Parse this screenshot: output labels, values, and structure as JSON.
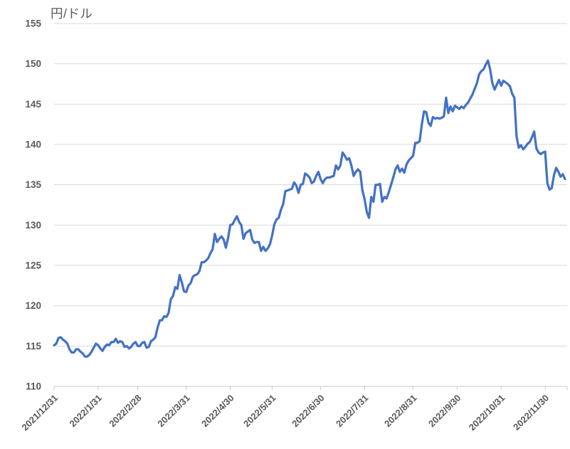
{
  "chart_title": "円/ドル",
  "colors": {
    "line": "#4472C4",
    "grid": "#D9D9D9",
    "axis": "#C8C8C8",
    "label": "#595959",
    "background": "#FFFFFF"
  },
  "chart_data": {
    "type": "line",
    "title": "円/ドル",
    "xlabel": "",
    "ylabel": "",
    "ylim": [
      110,
      155
    ],
    "ytick_labels": [
      "110",
      "115",
      "120",
      "125",
      "130",
      "135",
      "140",
      "145",
      "150",
      "155"
    ],
    "x_tick_labels": [
      "2021/12/31",
      "2022/1/31",
      "2022/2/28",
      "2022/3/31",
      "2022/4/30",
      "2022/5/31",
      "2022/6/30",
      "2022/7/31",
      "2022/8/31",
      "2022/9/30",
      "2022/10/31",
      "2022/11/30"
    ],
    "x_tick_indices": [
      0,
      20,
      38,
      60,
      80,
      99,
      121,
      141,
      163,
      183,
      203,
      223
    ],
    "grid": "horizontal",
    "legend": "none",
    "series": [
      {
        "name": "円/ドル",
        "values": [
          115.1,
          115.3,
          116.0,
          116.1,
          115.8,
          115.6,
          115.3,
          114.6,
          114.2,
          114.2,
          114.6,
          114.6,
          114.3,
          114.1,
          113.7,
          113.7,
          113.9,
          114.3,
          114.8,
          115.3,
          115.1,
          114.7,
          114.4,
          114.9,
          115.2,
          115.1,
          115.5,
          115.5,
          115.9,
          115.4,
          115.6,
          115.5,
          114.9,
          115.0,
          114.7,
          114.9,
          115.3,
          115.5,
          115.0,
          115.0,
          115.4,
          115.5,
          114.8,
          114.9,
          115.6,
          115.8,
          116.1,
          117.3,
          118.2,
          118.2,
          118.7,
          118.6,
          119.1,
          120.8,
          121.2,
          122.3,
          122.1,
          123.8,
          122.9,
          121.8,
          121.7,
          122.5,
          122.8,
          123.6,
          123.8,
          123.9,
          124.3,
          125.4,
          125.4,
          125.6,
          125.9,
          126.5,
          127.0,
          128.9,
          127.9,
          128.3,
          128.6,
          128.2,
          127.2,
          128.4,
          130.0,
          130.1,
          130.6,
          131.1,
          130.4,
          130.0,
          128.3,
          129.0,
          129.2,
          129.4,
          128.2,
          127.8,
          127.9,
          127.9,
          126.8,
          127.3,
          126.8,
          127.1,
          127.6,
          128.7,
          130.1,
          130.7,
          130.9,
          131.9,
          132.6,
          134.2,
          134.3,
          134.4,
          134.5,
          135.3,
          134.9,
          134.0,
          135.0,
          135.1,
          136.4,
          136.2,
          135.9,
          135.2,
          135.4,
          136.1,
          136.6,
          135.7,
          135.2,
          135.7,
          135.9,
          135.9,
          136.0,
          136.1,
          137.4,
          136.9,
          137.4,
          139.0,
          138.6,
          138.1,
          138.3,
          137.4,
          136.1,
          136.6,
          136.9,
          136.6,
          134.3,
          133.2,
          131.6,
          130.9,
          133.5,
          132.9,
          135.0,
          135.0,
          135.1,
          132.9,
          133.5,
          133.3,
          134.1,
          135.0,
          135.9,
          136.9,
          137.4,
          136.6,
          137.0,
          136.5,
          137.5,
          138.0,
          138.3,
          138.6,
          140.2,
          140.2,
          140.4,
          142.5,
          144.1,
          144.0,
          142.7,
          142.3,
          143.4,
          143.2,
          143.3,
          143.2,
          143.3,
          143.5,
          145.8,
          143.9,
          144.7,
          144.1,
          144.8,
          144.6,
          144.4,
          144.7,
          144.5,
          144.9,
          145.2,
          145.7,
          146.2,
          146.9,
          147.6,
          148.7,
          149.1,
          149.3,
          149.9,
          150.4,
          149.3,
          147.6,
          146.8,
          147.4,
          148.0,
          147.3,
          147.9,
          147.7,
          147.5,
          147.2,
          146.3,
          145.8,
          141.0,
          139.6,
          139.9,
          139.4,
          139.7,
          140.1,
          140.3,
          140.9,
          141.6,
          139.5,
          139.0,
          138.8,
          139.0,
          139.1,
          135.2,
          134.4,
          134.6,
          136.2,
          137.1,
          136.6,
          136.0,
          136.3,
          135.7
        ]
      }
    ]
  }
}
